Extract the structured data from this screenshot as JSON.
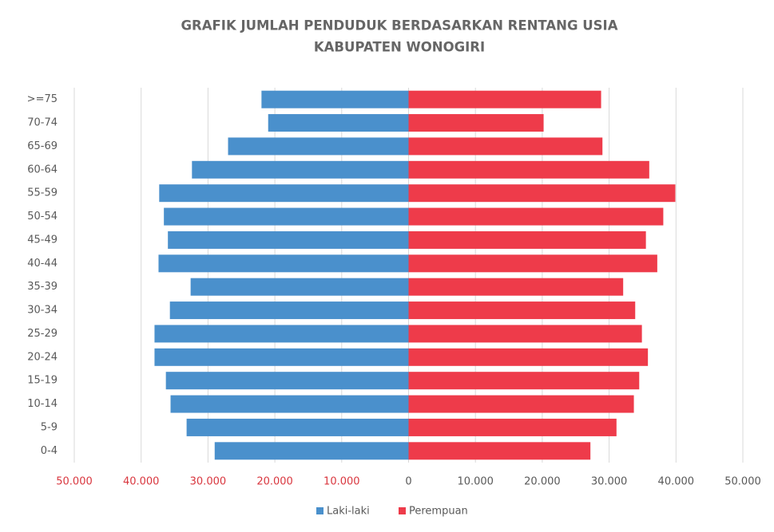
{
  "chart_data": {
    "type": "pyramid",
    "title": "GRAFIK JUMLAH PENDUDUK BERDASARKAN RENTANG USIA",
    "subtitle": "KABUPATEN WONOGIRI",
    "categories": [
      ">=75",
      "70-74",
      "65-69",
      "60-64",
      "55-59",
      "50-54",
      "45-49",
      "40-44",
      "35-39",
      "30-34",
      "25-29",
      "20-24",
      "15-19",
      "10-14",
      "5-9",
      "0-4"
    ],
    "series": [
      {
        "name": "Laki-laki",
        "color": "#4a90cc",
        "values": [
          -22000,
          -21000,
          -27000,
          -32400,
          -37300,
          -36600,
          -36000,
          -37400,
          -32600,
          -35700,
          -38000,
          -38000,
          -36300,
          -35600,
          -33200,
          -29000
        ]
      },
      {
        "name": "Perempuan",
        "color": "#ee3b4a",
        "values": [
          28800,
          20200,
          29000,
          36000,
          39900,
          38100,
          35500,
          37200,
          32100,
          33900,
          34900,
          35800,
          34500,
          33700,
          31100,
          27200
        ]
      }
    ],
    "xlim": [
      -50000,
      50000
    ],
    "xticks": [
      {
        "value": -50000,
        "label": "50.000"
      },
      {
        "value": -40000,
        "label": "40.000"
      },
      {
        "value": -30000,
        "label": "30.000"
      },
      {
        "value": -20000,
        "label": "20.000"
      },
      {
        "value": -10000,
        "label": "10.000"
      },
      0,
      {
        "value": 10000,
        "label": "10.000"
      },
      {
        "value": 20000,
        "label": "20.000"
      },
      {
        "value": 30000,
        "label": "30.000"
      },
      {
        "value": 40000,
        "label": "40.000"
      },
      {
        "value": 50000,
        "label": "50.000"
      }
    ],
    "negative_tick_color": "#d9373f",
    "grid": true,
    "legend": "bottom"
  }
}
